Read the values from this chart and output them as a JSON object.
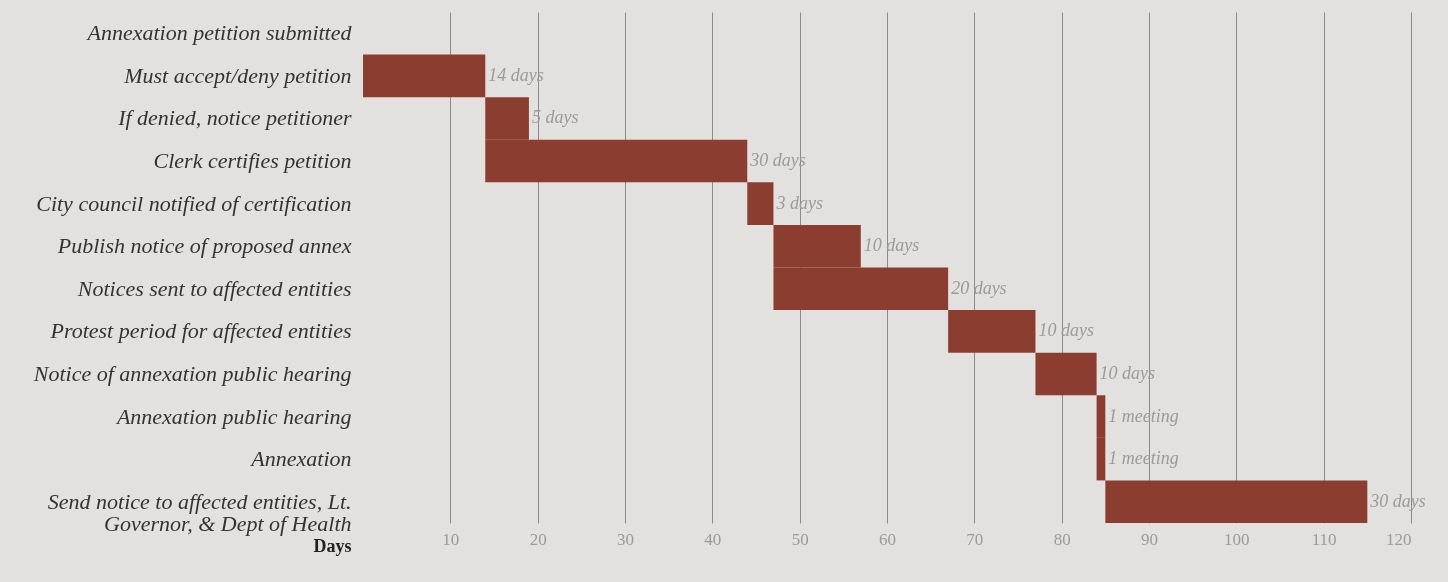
{
  "chart_data": {
    "type": "bar",
    "orientation": "horizontal",
    "xlabel": "Days",
    "categories": [
      "Annexation petition submitted",
      "Must accept/deny petition",
      "If denied, notice petitioner",
      "Clerk certifies petition",
      "City council notified of certification",
      "Publish notice of proposed annex",
      "Notices sent to affected entities",
      "Protest period for affected entities",
      "Notice of annexation public hearing",
      "Annexation public hearing",
      "Annexation",
      "Send notice to affected entities, Lt.\nGovernor, & Dept of Health"
    ],
    "base": [
      null,
      0,
      14,
      14,
      44,
      47,
      47,
      67,
      77,
      84,
      84,
      85
    ],
    "values": [
      null,
      14,
      5,
      30,
      3,
      10,
      20,
      10,
      7,
      1,
      1,
      30
    ],
    "annotations": [
      {
        "text": "14 days",
        "x": 14,
        "y": "Must accept/deny petition"
      },
      {
        "text": "5 days",
        "x": 19,
        "y": "If denied, notice petitioner"
      },
      {
        "text": "30 days",
        "x": 44,
        "y": "Clerk certifies petition"
      },
      {
        "text": "3 days",
        "x": 47,
        "y": "City council notified of certification"
      },
      {
        "text": "10 days",
        "x": 57,
        "y": "Publish notice of proposed annex"
      },
      {
        "text": "20 days",
        "x": 67,
        "y": "Notices sent to affected entities"
      },
      {
        "text": "10 days",
        "x": 77,
        "y": "Protest period for affected entities"
      },
      {
        "text": "10 days",
        "x": 84,
        "y": "Notice of annexation public hearing"
      },
      {
        "text": "1 meeting",
        "x": 85,
        "y": "Annexation public hearing"
      },
      {
        "text": "1 meeting",
        "x": 85,
        "y": "Annexation"
      },
      {
        "text": "30 days",
        "x": 115,
        "y": "Send notice to affected entities, Lt.\nGovernor, & Dept of Health"
      }
    ],
    "color": "#8b3e2f",
    "xlim": [
      0,
      120
    ],
    "xticks": [
      10,
      20,
      30,
      40,
      50,
      60,
      70,
      80,
      90,
      100,
      110,
      120
    ],
    "grid": "x"
  }
}
